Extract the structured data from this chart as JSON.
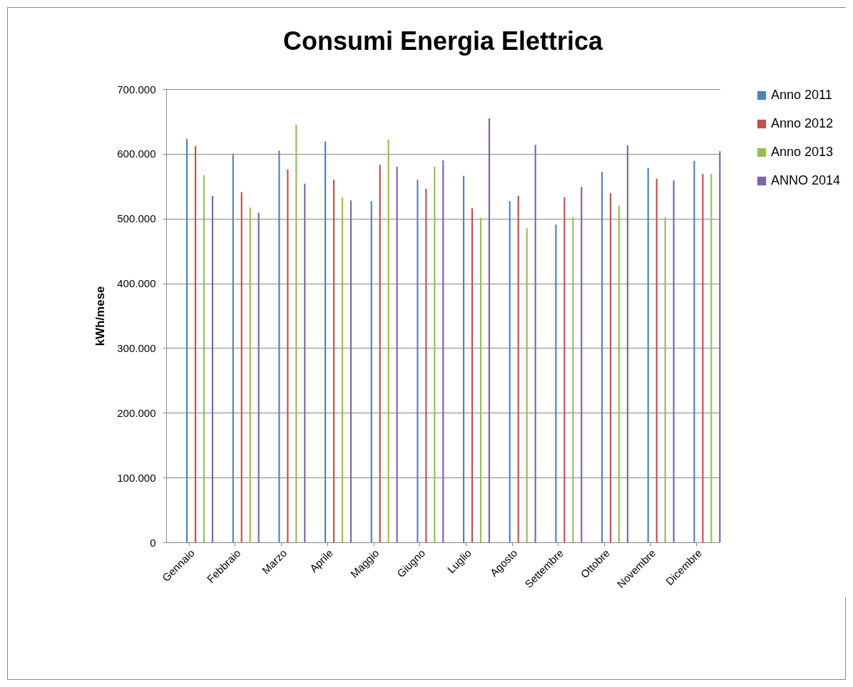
{
  "chart_data": {
    "type": "bar",
    "title": "Consumi Energia Elettrica",
    "ylabel": "kWh/mese",
    "categories": [
      "Gennaio",
      "Febbraio",
      "Marzo",
      "Aprile",
      "Maggio",
      "Giugno",
      "Luglio",
      "Agosto",
      "Settembre",
      "Ottobre",
      "Novembre",
      "Dicembre"
    ],
    "series": [
      {
        "name": "Anno 2011",
        "color": "#4f81bd",
        "values": [
          623000,
          600000,
          605000,
          619000,
          527000,
          560000,
          566000,
          527000,
          491000,
          572000,
          578000,
          589000
        ]
      },
      {
        "name": "Anno 2012",
        "color": "#c0504d",
        "values": [
          612000,
          541000,
          576000,
          560000,
          583000,
          546000,
          516000,
          535000,
          533000,
          539000,
          562000,
          569000
        ]
      },
      {
        "name": "Anno 2013",
        "color": "#9bbb59",
        "values": [
          567000,
          517000,
          645000,
          533000,
          622000,
          580000,
          501000,
          485000,
          502000,
          520000,
          502000,
          569000
        ]
      },
      {
        "name": "ANNO 2014",
        "color": "#8064a2",
        "values": [
          535000,
          509000,
          554000,
          528000,
          580000,
          590000,
          655000,
          614000,
          549000,
          613000,
          559000,
          604000
        ]
      }
    ],
    "ylim": [
      0,
      700000
    ],
    "yticks": [
      0,
      {
        "value": 100000,
        "label": "100.000"
      },
      {
        "value": 200000,
        "label": "200.000"
      },
      {
        "value": 300000,
        "label": "300.000"
      },
      {
        "value": 400000,
        "label": "400.000"
      },
      {
        "value": 500000,
        "label": "500.000"
      },
      {
        "value": 600000,
        "label": "600.000"
      },
      {
        "value": 700000,
        "label": "700.000"
      }
    ],
    "grid": "y",
    "legend": "right"
  }
}
